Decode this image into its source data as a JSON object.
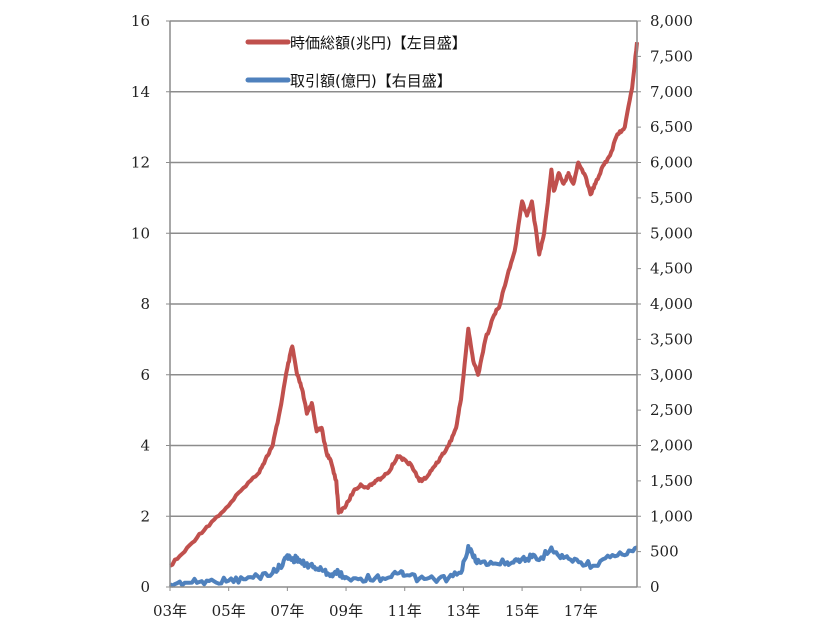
{
  "chart_data": {
    "type": "line",
    "title": "",
    "xlabel": "",
    "ylabel_left": "",
    "ylabel_right": "",
    "x_range": [
      "2003-01",
      "2018-12"
    ],
    "x_ticks": [
      {
        "x": "2003-01",
        "label": "03年"
      },
      {
        "x": "2005-01",
        "label": "05年"
      },
      {
        "x": "2007-01",
        "label": "07年"
      },
      {
        "x": "2009-01",
        "label": "09年"
      },
      {
        "x": "2011-01",
        "label": "11年"
      },
      {
        "x": "2013-01",
        "label": "13年"
      },
      {
        "x": "2015-01",
        "label": "15年"
      },
      {
        "x": "2017-01",
        "label": "17年"
      }
    ],
    "y_left": {
      "min": 0,
      "max": 16,
      "ticks": [
        "0",
        "2",
        "4",
        "6",
        "8",
        "10",
        "12",
        "14",
        "16"
      ]
    },
    "y_right": {
      "min": 0,
      "max": 8000,
      "ticks": [
        "0",
        "500",
        "1,000",
        "1,500",
        "2,000",
        "2,500",
        "3,000",
        "3,500",
        "4,000",
        "4,500",
        "5,000",
        "5,500",
        "6,000",
        "6,500",
        "7,000",
        "7,500",
        "8,000"
      ]
    },
    "grid": "horizontal",
    "legend_placement": "top-center",
    "series": [
      {
        "name": "時価総額(兆円)【左目盛】",
        "axis": "left",
        "color": "#c0504d",
        "points": [
          [
            "2003-01",
            0.6
          ],
          [
            "2003-07",
            1.0
          ],
          [
            "2004-01",
            1.5
          ],
          [
            "2004-07",
            1.9
          ],
          [
            "2005-01",
            2.3
          ],
          [
            "2005-07",
            2.8
          ],
          [
            "2006-01",
            3.2
          ],
          [
            "2006-04",
            3.6
          ],
          [
            "2006-07",
            4.0
          ],
          [
            "2006-10",
            5.0
          ],
          [
            "2007-01",
            6.2
          ],
          [
            "2007-03",
            6.8
          ],
          [
            "2007-05",
            6.0
          ],
          [
            "2007-07",
            5.6
          ],
          [
            "2007-09",
            4.9
          ],
          [
            "2007-11",
            5.2
          ],
          [
            "2008-01",
            4.4
          ],
          [
            "2008-03",
            4.5
          ],
          [
            "2008-05",
            3.8
          ],
          [
            "2008-07",
            3.5
          ],
          [
            "2008-09",
            3.0
          ],
          [
            "2008-10",
            2.1
          ],
          [
            "2009-01",
            2.3
          ],
          [
            "2009-04",
            2.7
          ],
          [
            "2009-07",
            2.9
          ],
          [
            "2009-10",
            2.8
          ],
          [
            "2010-01",
            3.0
          ],
          [
            "2010-04",
            3.1
          ],
          [
            "2010-07",
            3.3
          ],
          [
            "2010-10",
            3.7
          ],
          [
            "2011-01",
            3.6
          ],
          [
            "2011-04",
            3.4
          ],
          [
            "2011-07",
            3.0
          ],
          [
            "2011-10",
            3.1
          ],
          [
            "2012-01",
            3.4
          ],
          [
            "2012-04",
            3.7
          ],
          [
            "2012-07",
            4.0
          ],
          [
            "2012-10",
            4.5
          ],
          [
            "2012-12",
            5.3
          ],
          [
            "2013-03",
            7.3
          ],
          [
            "2013-05",
            6.4
          ],
          [
            "2013-07",
            6.0
          ],
          [
            "2013-10",
            7.0
          ],
          [
            "2014-01",
            7.6
          ],
          [
            "2014-04",
            8.0
          ],
          [
            "2014-07",
            8.8
          ],
          [
            "2014-10",
            9.5
          ],
          [
            "2015-01",
            10.9
          ],
          [
            "2015-03",
            10.5
          ],
          [
            "2015-05",
            10.9
          ],
          [
            "2015-08",
            9.4
          ],
          [
            "2015-10",
            10.0
          ],
          [
            "2016-01",
            11.8
          ],
          [
            "2016-02",
            11.2
          ],
          [
            "2016-04",
            11.7
          ],
          [
            "2016-06",
            11.4
          ],
          [
            "2016-08",
            11.7
          ],
          [
            "2016-10",
            11.4
          ],
          [
            "2016-12",
            12.0
          ],
          [
            "2017-03",
            11.6
          ],
          [
            "2017-05",
            11.1
          ],
          [
            "2017-07",
            11.4
          ],
          [
            "2017-10",
            11.9
          ],
          [
            "2018-01",
            12.2
          ],
          [
            "2018-04",
            12.8
          ],
          [
            "2018-07",
            13.0
          ],
          [
            "2018-10",
            14.1
          ],
          [
            "2018-12",
            15.4
          ]
        ]
      },
      {
        "name": "取引額(億円)【右目盛】",
        "axis": "right",
        "color": "#4f81bd",
        "points": [
          [
            "2003-01",
            40
          ],
          [
            "2003-07",
            60
          ],
          [
            "2004-01",
            70
          ],
          [
            "2004-07",
            80
          ],
          [
            "2005-01",
            90
          ],
          [
            "2005-07",
            110
          ],
          [
            "2006-01",
            150
          ],
          [
            "2006-07",
            200
          ],
          [
            "2006-10",
            290
          ],
          [
            "2007-01",
            450
          ],
          [
            "2007-03",
            380
          ],
          [
            "2007-05",
            420
          ],
          [
            "2007-07",
            330
          ],
          [
            "2007-10",
            300
          ],
          [
            "2008-01",
            260
          ],
          [
            "2008-04",
            230
          ],
          [
            "2008-07",
            180
          ],
          [
            "2008-10",
            200
          ],
          [
            "2009-01",
            140
          ],
          [
            "2009-07",
            120
          ],
          [
            "2010-01",
            130
          ],
          [
            "2010-07",
            140
          ],
          [
            "2010-10",
            190
          ],
          [
            "2011-01",
            160
          ],
          [
            "2011-07",
            120
          ],
          [
            "2012-01",
            110
          ],
          [
            "2012-07",
            130
          ],
          [
            "2012-12",
            200
          ],
          [
            "2013-03",
            580
          ],
          [
            "2013-05",
            420
          ],
          [
            "2013-08",
            340
          ],
          [
            "2014-01",
            330
          ],
          [
            "2014-07",
            350
          ],
          [
            "2014-10",
            380
          ],
          [
            "2015-01",
            400
          ],
          [
            "2015-05",
            420
          ],
          [
            "2015-08",
            380
          ],
          [
            "2016-01",
            560
          ],
          [
            "2016-04",
            440
          ],
          [
            "2016-08",
            400
          ],
          [
            "2017-01",
            350
          ],
          [
            "2017-07",
            300
          ],
          [
            "2018-01",
            420
          ],
          [
            "2018-07",
            450
          ],
          [
            "2018-12",
            560
          ]
        ]
      }
    ]
  }
}
